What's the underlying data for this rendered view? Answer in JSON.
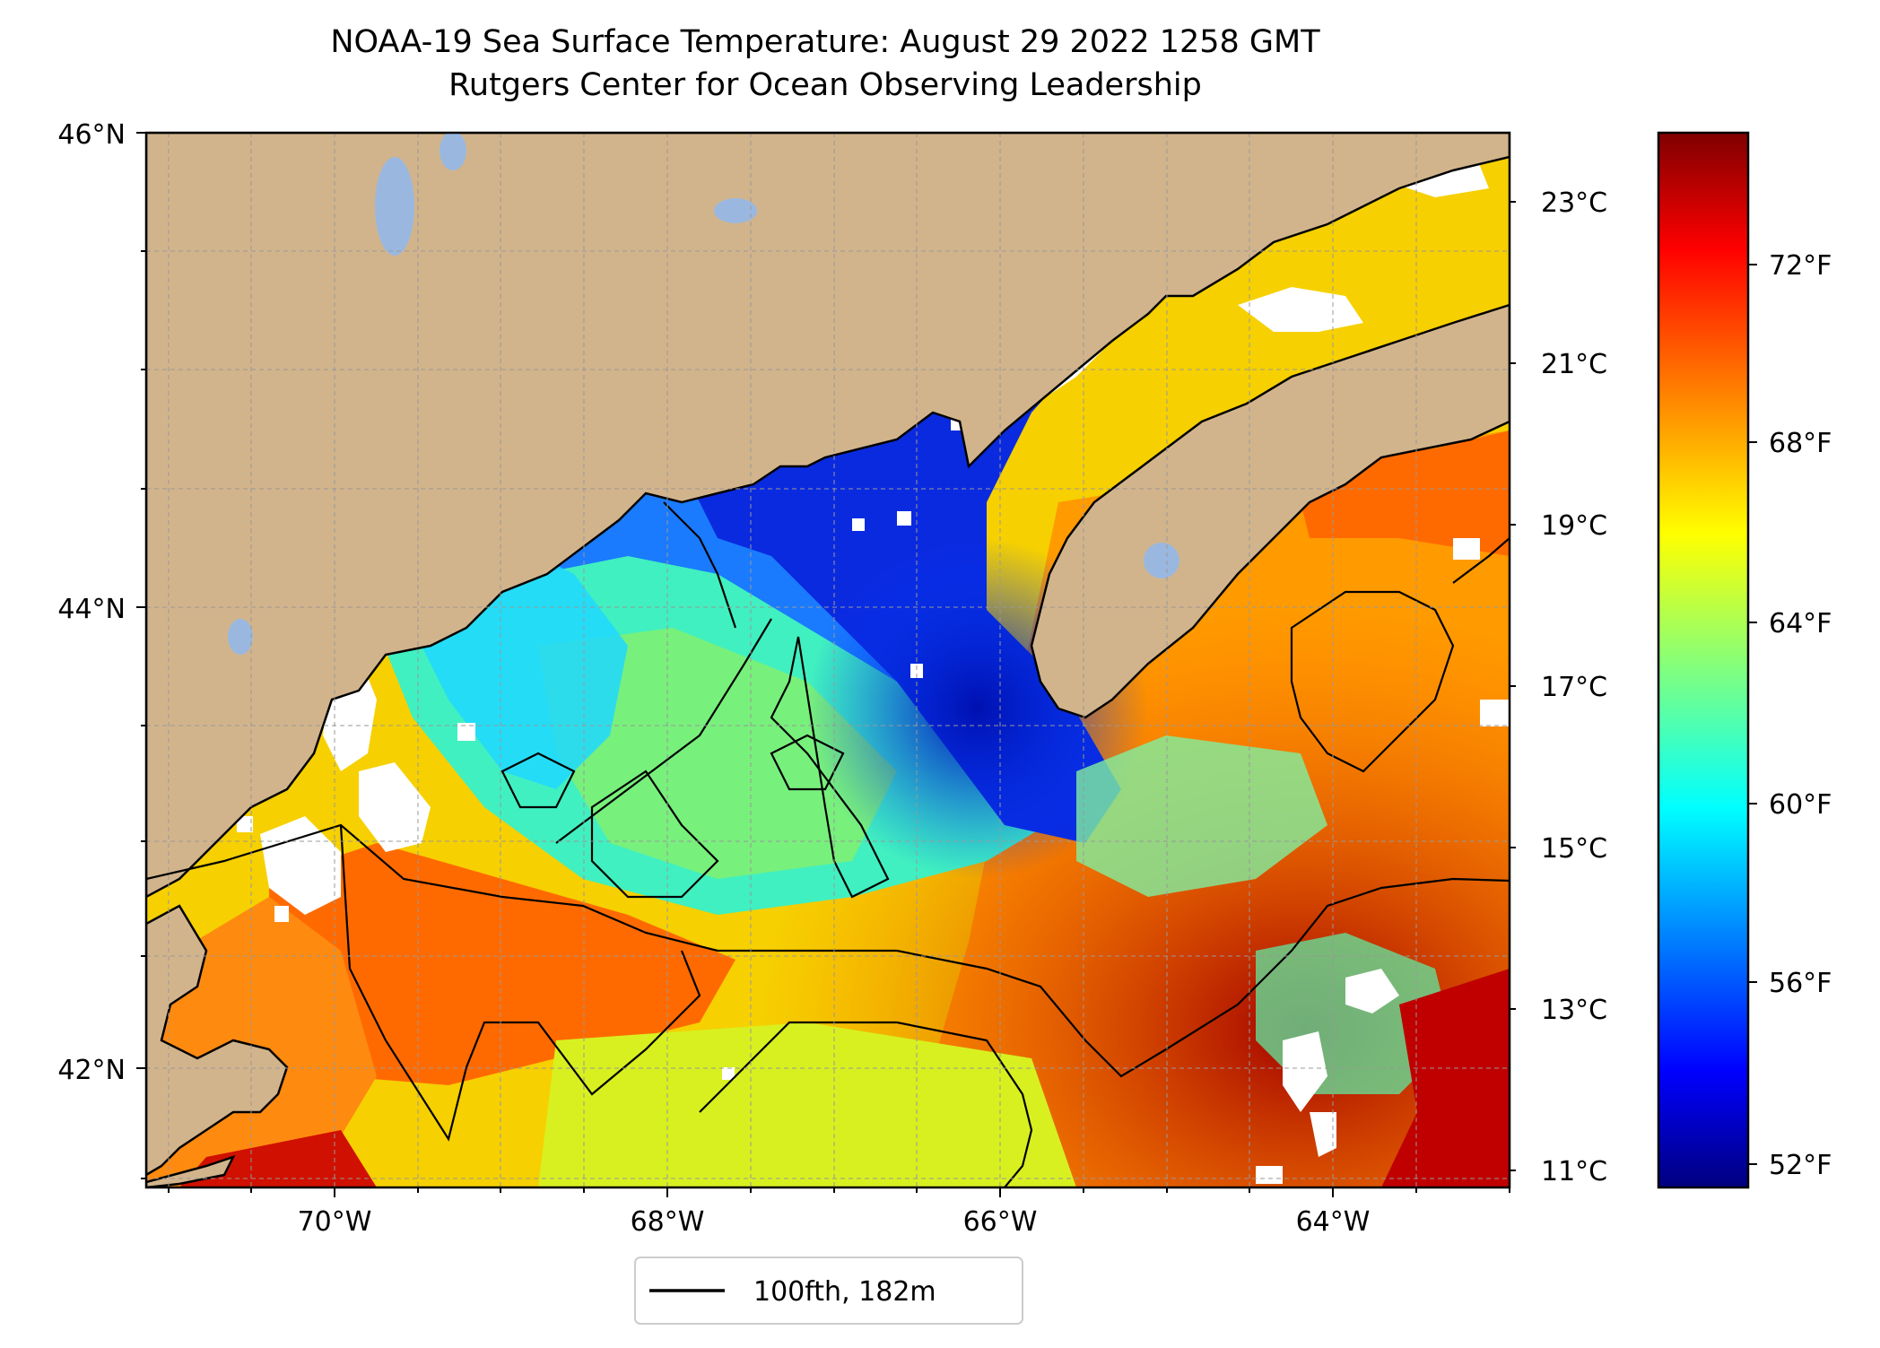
{
  "title": "NOAA-19 Sea Surface Temperature: August 29 2022 1258 GMT",
  "subtitle": "Rutgers Center for Ocean Observing Leadership",
  "map": {
    "lon_range": [
      -71.2,
      -63.0
    ],
    "lat_range": [
      41.5,
      46.0
    ],
    "lon_ticks": [
      "70°W",
      "68°W",
      "66°W",
      "64°W"
    ],
    "lat_ticks": [
      "46°N",
      "44°N",
      "42°N"
    ],
    "gridlines": true,
    "land_color": "#d2b48c",
    "lake_color": "#9ab8df"
  },
  "legend": {
    "label": "100fth, 182m",
    "placement": "bottom-center"
  },
  "colorbar": {
    "colormap": "jet",
    "celsius_ticks": [
      "23°C",
      "21°C",
      "19°C",
      "17°C",
      "15°C",
      "13°C",
      "11°C"
    ],
    "fahrenheit_ticks": [
      "72°F",
      "68°F",
      "64°F",
      "60°F",
      "56°F",
      "52°F"
    ]
  }
}
